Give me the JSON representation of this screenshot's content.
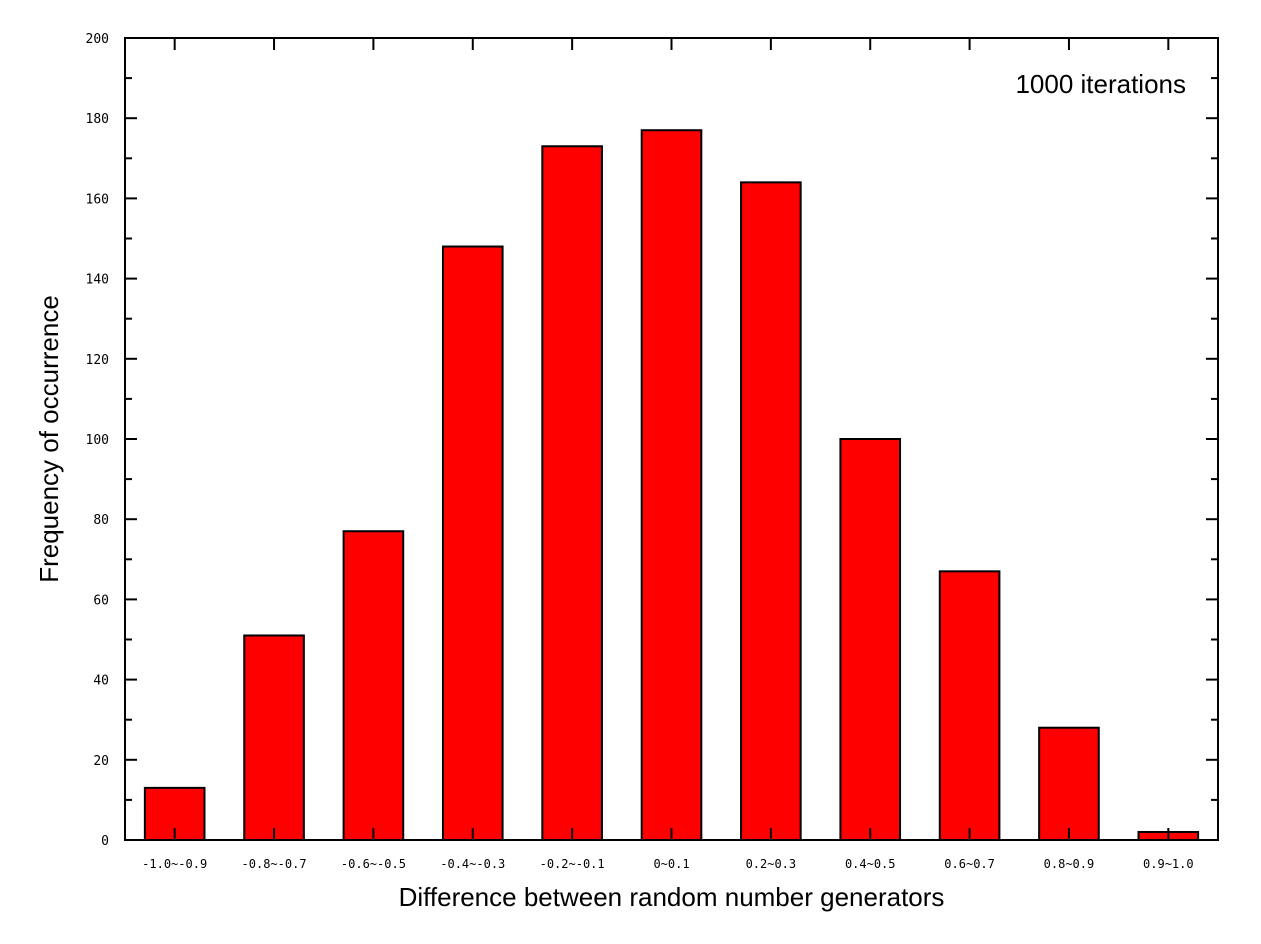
{
  "chart_data": {
    "type": "bar",
    "categories": [
      "-1.0~-0.9",
      "-0.8~-0.7",
      "-0.6~-0.5",
      "-0.4~-0.3",
      "-0.2~-0.1",
      "0~0.1",
      "0.2~0.3",
      "0.4~0.5",
      "0.6~0.7",
      "0.8~0.9",
      "0.9~1.0"
    ],
    "values": [
      13,
      51,
      77,
      148,
      173,
      177,
      164,
      100,
      67,
      28,
      2
    ],
    "title": "",
    "xlabel": "Difference between random number generators",
    "ylabel": "Frequency of occurrence",
    "annotation": "1000 iterations",
    "ylim": [
      0,
      200
    ],
    "yticks": [
      0,
      20,
      40,
      60,
      80,
      100,
      120,
      140,
      160,
      180,
      200
    ],
    "bar_color": "#ff0000",
    "grid": false,
    "legend": "none"
  }
}
